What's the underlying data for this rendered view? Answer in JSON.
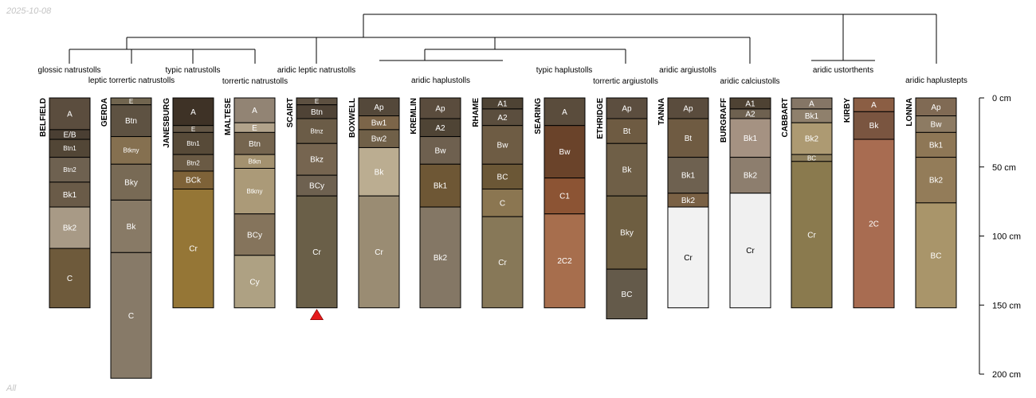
{
  "date_stamp": "2025-10-08",
  "filter_label": "All",
  "depth_axis": {
    "unit": "cm",
    "max_depth": 200,
    "ticks": [
      {
        "value": 0,
        "label": "0 cm"
      },
      {
        "value": 50,
        "label": "50 cm"
      },
      {
        "value": 100,
        "label": "100 cm"
      },
      {
        "value": 150,
        "label": "150 cm"
      },
      {
        "value": 200,
        "label": "200 cm"
      }
    ]
  },
  "taxa_labels": [
    "glossic natrustolls",
    "leptic torrertic natrustolls",
    "typic natrustolls",
    "torrertic natrustolls",
    "aridic leptic natrustolls",
    "aridic haplustolls",
    "typic haplustolls",
    "torrertic argiustolls",
    "aridic argiustolls",
    "aridic calciustolls",
    "aridic ustorthents",
    "aridic haplustepts"
  ],
  "profiles": [
    {
      "name": "BELFIELD",
      "horizons": [
        {
          "name": "A",
          "top": 0,
          "bottom": 23,
          "color": "#5b4d3e"
        },
        {
          "name": "E/B",
          "top": 23,
          "bottom": 30,
          "color": "#4a3f33"
        },
        {
          "name": "Btn1",
          "top": 30,
          "bottom": 43,
          "color": "#524636"
        },
        {
          "name": "Btn2",
          "top": 43,
          "bottom": 61,
          "color": "#6e6150"
        },
        {
          "name": "Bk1",
          "top": 61,
          "bottom": 79,
          "color": "#6a5b48"
        },
        {
          "name": "Bk2",
          "top": 79,
          "bottom": 109,
          "color": "#a89a86"
        },
        {
          "name": "C",
          "top": 109,
          "bottom": 152,
          "color": "#6e5a3b"
        }
      ]
    },
    {
      "name": "GERDA",
      "horizons": [
        {
          "name": "E",
          "top": 0,
          "bottom": 5,
          "color": "#71654f"
        },
        {
          "name": "Btn",
          "top": 5,
          "bottom": 28,
          "color": "#5e5242"
        },
        {
          "name": "Btkny",
          "top": 28,
          "bottom": 48,
          "color": "#857050"
        },
        {
          "name": "Bky",
          "top": 48,
          "bottom": 74,
          "color": "#786a55"
        },
        {
          "name": "Bk",
          "top": 74,
          "bottom": 112,
          "color": "#887a66"
        },
        {
          "name": "C",
          "top": 112,
          "bottom": 203,
          "color": "#877a68"
        }
      ]
    },
    {
      "name": "JANESBURG",
      "horizons": [
        {
          "name": "A",
          "top": 0,
          "bottom": 20,
          "color": "#3e3226"
        },
        {
          "name": "E",
          "top": 20,
          "bottom": 25,
          "color": "#625544"
        },
        {
          "name": "Btn1",
          "top": 25,
          "bottom": 41,
          "color": "#574a38"
        },
        {
          "name": "Btn2",
          "top": 41,
          "bottom": 53,
          "color": "#6a5a44"
        },
        {
          "name": "BCk",
          "top": 53,
          "bottom": 66,
          "color": "#7e6238"
        },
        {
          "name": "Cr",
          "top": 66,
          "bottom": 152,
          "color": "#957636"
        }
      ]
    },
    {
      "name": "MALTESE",
      "horizons": [
        {
          "name": "A",
          "top": 0,
          "bottom": 18,
          "color": "#928474"
        },
        {
          "name": "E",
          "top": 18,
          "bottom": 25,
          "color": "#b2a38b"
        },
        {
          "name": "Btn",
          "top": 25,
          "bottom": 41,
          "color": "#75654f"
        },
        {
          "name": "Btkn",
          "top": 41,
          "bottom": 51,
          "color": "#a3916f"
        },
        {
          "name": "Btkny",
          "top": 51,
          "bottom": 84,
          "color": "#ab9a78"
        },
        {
          "name": "BCy",
          "top": 84,
          "bottom": 114,
          "color": "#85745c"
        },
        {
          "name": "Cy",
          "top": 114,
          "bottom": 152,
          "color": "#aea183"
        }
      ]
    },
    {
      "name": "SCAIRT",
      "marker": true,
      "horizons": [
        {
          "name": "E",
          "top": 0,
          "bottom": 5,
          "color": "#5d5041"
        },
        {
          "name": "Btn",
          "top": 5,
          "bottom": 15,
          "color": "#4f4336"
        },
        {
          "name": "Btnz",
          "top": 15,
          "bottom": 33,
          "color": "#6b5c47"
        },
        {
          "name": "Bkz",
          "top": 33,
          "bottom": 56,
          "color": "#766550"
        },
        {
          "name": "BCy",
          "top": 56,
          "bottom": 71,
          "color": "#6e6150"
        },
        {
          "name": "Cr",
          "top": 71,
          "bottom": 152,
          "color": "#6a5f48"
        }
      ]
    },
    {
      "name": "BOXWELL",
      "horizons": [
        {
          "name": "Ap",
          "top": 0,
          "bottom": 13,
          "color": "#54483a"
        },
        {
          "name": "Bw1",
          "top": 13,
          "bottom": 23,
          "color": "#7c6549"
        },
        {
          "name": "Bw2",
          "top": 23,
          "bottom": 36,
          "color": "#706048"
        },
        {
          "name": "Bk",
          "top": 36,
          "bottom": 71,
          "color": "#bbad91"
        },
        {
          "name": "Cr",
          "top": 71,
          "bottom": 152,
          "color": "#9a8c73"
        }
      ]
    },
    {
      "name": "KREMLIN",
      "horizons": [
        {
          "name": "Ap",
          "top": 0,
          "bottom": 15,
          "color": "#5a4c3d"
        },
        {
          "name": "A2",
          "top": 15,
          "bottom": 28,
          "color": "#4f4435"
        },
        {
          "name": "Bw",
          "top": 28,
          "bottom": 48,
          "color": "#6e604f"
        },
        {
          "name": "Bk1",
          "top": 48,
          "bottom": 79,
          "color": "#6e5735"
        },
        {
          "name": "Bk2",
          "top": 79,
          "bottom": 152,
          "color": "#847765"
        }
      ]
    },
    {
      "name": "RHAME",
      "horizons": [
        {
          "name": "A1",
          "top": 0,
          "bottom": 8,
          "color": "#4e4334"
        },
        {
          "name": "A2",
          "top": 8,
          "bottom": 20,
          "color": "#5b4e3e"
        },
        {
          "name": "Bw",
          "top": 20,
          "bottom": 48,
          "color": "#6e5c44"
        },
        {
          "name": "BC",
          "top": 48,
          "bottom": 66,
          "color": "#6b5736"
        },
        {
          "name": "C",
          "top": 66,
          "bottom": 86,
          "color": "#8b7651"
        },
        {
          "name": "Cr",
          "top": 86,
          "bottom": 152,
          "color": "#877858"
        }
      ]
    },
    {
      "name": "SEARING",
      "horizons": [
        {
          "name": "A",
          "top": 0,
          "bottom": 20,
          "color": "#5a4c3c"
        },
        {
          "name": "Bw",
          "top": 20,
          "bottom": 58,
          "color": "#6a432a"
        },
        {
          "name": "C1",
          "top": 58,
          "bottom": 84,
          "color": "#8c5434"
        },
        {
          "name": "2C2",
          "top": 84,
          "bottom": 152,
          "color": "#a76e4d"
        }
      ]
    },
    {
      "name": "ETHRIDGE",
      "horizons": [
        {
          "name": "Ap",
          "top": 0,
          "bottom": 15,
          "color": "#5c4e3f"
        },
        {
          "name": "Bt",
          "top": 15,
          "bottom": 33,
          "color": "#6e5b42"
        },
        {
          "name": "Bk",
          "top": 33,
          "bottom": 71,
          "color": "#6f5f47"
        },
        {
          "name": "Bky",
          "top": 71,
          "bottom": 124,
          "color": "#6e5e41"
        },
        {
          "name": "BC",
          "top": 124,
          "bottom": 160,
          "color": "#645a4a"
        }
      ]
    },
    {
      "name": "TANNA",
      "horizons": [
        {
          "name": "Ap",
          "top": 0,
          "bottom": 15,
          "color": "#5a4c3d"
        },
        {
          "name": "Bt",
          "top": 15,
          "bottom": 43,
          "color": "#6f5b42"
        },
        {
          "name": "Bk1",
          "top": 43,
          "bottom": 69,
          "color": "#6e6150"
        },
        {
          "name": "Bk2",
          "top": 69,
          "bottom": 79,
          "color": "#7a6145"
        },
        {
          "name": "Cr",
          "top": 79,
          "bottom": 152,
          "color": "#f2f2f2"
        }
      ]
    },
    {
      "name": "BURGRAFF",
      "horizons": [
        {
          "name": "A1",
          "top": 0,
          "bottom": 8,
          "color": "#4e4233"
        },
        {
          "name": "A2",
          "top": 8,
          "bottom": 15,
          "color": "#6e6150"
        },
        {
          "name": "Bk1",
          "top": 15,
          "bottom": 43,
          "color": "#a59282"
        },
        {
          "name": "Bk2",
          "top": 43,
          "bottom": 69,
          "color": "#8d7e6e"
        },
        {
          "name": "Cr",
          "top": 69,
          "bottom": 152,
          "color": "#f0f0f0"
        }
      ]
    },
    {
      "name": "CABBART",
      "horizons": [
        {
          "name": "A",
          "top": 0,
          "bottom": 8,
          "color": "#857666"
        },
        {
          "name": "Bk1",
          "top": 8,
          "bottom": 18,
          "color": "#8f806c"
        },
        {
          "name": "Bk2",
          "top": 18,
          "bottom": 41,
          "color": "#ad9a72"
        },
        {
          "name": "BC",
          "top": 41,
          "bottom": 46,
          "color": "#8e7f5c"
        },
        {
          "name": "Cr",
          "top": 46,
          "bottom": 152,
          "color": "#8a7a4e"
        }
      ]
    },
    {
      "name": "KIRBY",
      "horizons": [
        {
          "name": "A",
          "top": 0,
          "bottom": 10,
          "color": "#8b5e44"
        },
        {
          "name": "Bk",
          "top": 10,
          "bottom": 30,
          "color": "#7a5540"
        },
        {
          "name": "2C",
          "top": 30,
          "bottom": 152,
          "color": "#a86c51"
        }
      ]
    },
    {
      "name": "LONNA",
      "horizons": [
        {
          "name": "Ap",
          "top": 0,
          "bottom": 13,
          "color": "#806a54"
        },
        {
          "name": "Bw",
          "top": 13,
          "bottom": 25,
          "color": "#8d7b63"
        },
        {
          "name": "Bk1",
          "top": 25,
          "bottom": 43,
          "color": "#8e7756"
        },
        {
          "name": "Bk2",
          "top": 43,
          "bottom": 76,
          "color": "#937c59"
        },
        {
          "name": "BC",
          "top": 76,
          "bottom": 152,
          "color": "#a9956a"
        }
      ]
    }
  ]
}
